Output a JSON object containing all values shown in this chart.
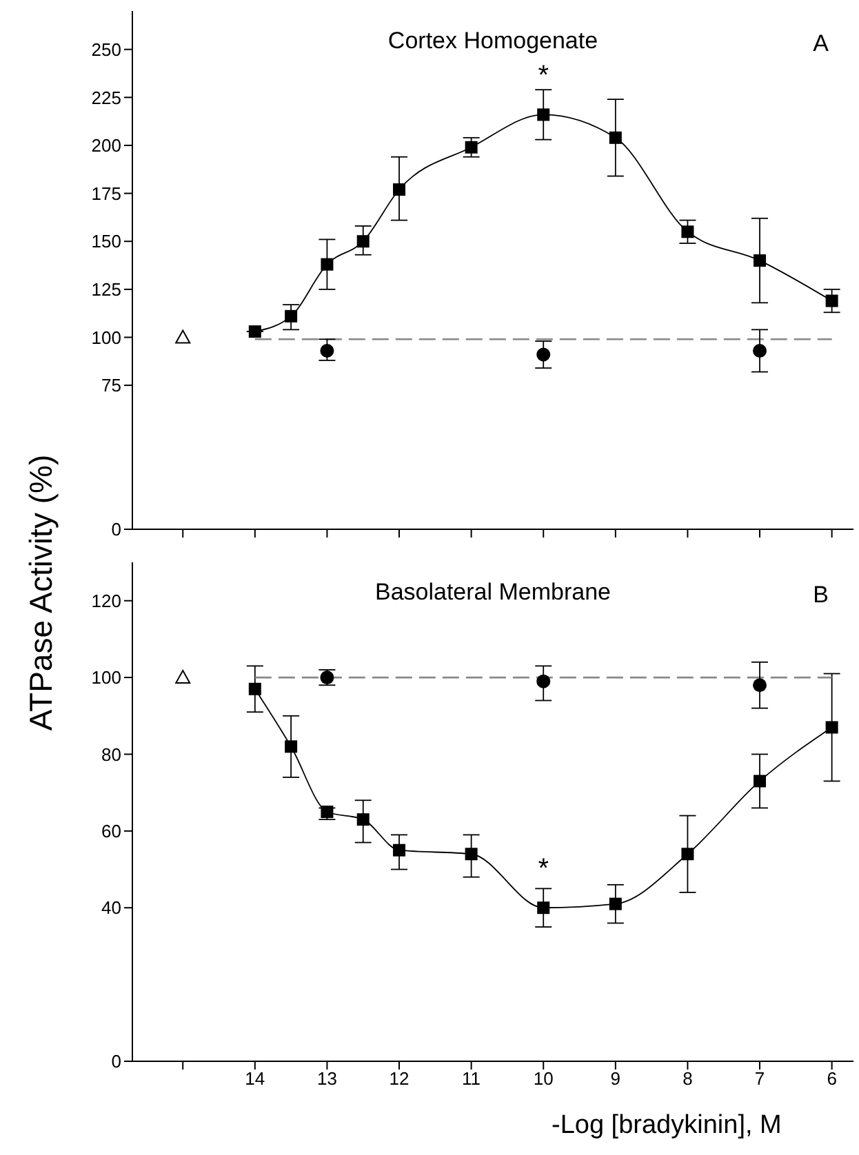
{
  "chart_data": [
    {
      "type": "line",
      "title": "Cortex Homogenate",
      "ylabel": "ATPase Activity (%)",
      "annotations": [
        "A",
        {
          "text": "*",
          "x": 10,
          "y": 216
        }
      ],
      "xlim": [
        15.7,
        5.7
      ],
      "xticks": [
        {
          "value": 15,
          "label": null
        },
        14,
        13,
        12,
        11,
        10,
        9,
        8,
        7,
        6
      ],
      "ylim": [
        0,
        270
      ],
      "yticks": [
        0,
        75,
        100,
        125,
        150,
        175,
        200,
        225,
        250
      ],
      "tick_labels": "y",
      "grid": false,
      "series": [
        {
          "type": "line",
          "color": "#000000",
          "marker": "square",
          "x": [
            14,
            13.5,
            13,
            12.5,
            12,
            11,
            10,
            9,
            8,
            7,
            6
          ],
          "values": [
            103,
            111,
            138,
            150,
            177,
            199,
            216,
            204,
            155,
            140,
            119
          ],
          "errors": [
            null,
            [
              104,
              117
            ],
            [
              125,
              151
            ],
            [
              143,
              158
            ],
            [
              161,
              194
            ],
            [
              194,
              204
            ],
            [
              203,
              229
            ],
            [
              184,
              224
            ],
            [
              149,
              161
            ],
            [
              118,
              162
            ],
            [
              113,
              125
            ]
          ]
        },
        {
          "type": "line",
          "color": "#888888",
          "marker": "none",
          "line_style": "dashed",
          "x": [
            14,
            6
          ],
          "values": [
            99,
            99
          ]
        },
        {
          "type": "scatter",
          "color": "#000000",
          "marker": "circle",
          "x": [
            13,
            10,
            7
          ],
          "values": [
            93,
            91,
            93
          ],
          "errors": [
            [
              88,
              99
            ],
            [
              84,
              98
            ],
            [
              82,
              104
            ]
          ]
        },
        {
          "type": "scatter",
          "color": "#000000",
          "marker": "triangle",
          "x": [
            15
          ],
          "values": [
            100
          ]
        }
      ]
    },
    {
      "type": "line",
      "title": "Basolateral Membrane",
      "xlabel": "-Log [bradykinin], M",
      "annotations": [
        "B",
        {
          "text": "*",
          "x": 10,
          "y": 40
        }
      ],
      "xlim": [
        15.7,
        5.7
      ],
      "xticks": [
        {
          "value": 15,
          "label": null
        },
        14,
        13,
        12,
        11,
        10,
        9,
        8,
        7,
        6
      ],
      "ylim": [
        0,
        130
      ],
      "yticks": [
        0,
        40,
        60,
        80,
        100,
        120
      ],
      "grid": false,
      "series": [
        {
          "type": "line",
          "color": "#000000",
          "marker": "square",
          "x": [
            14,
            13.5,
            13,
            12.5,
            12,
            11,
            10,
            9,
            8,
            7,
            6
          ],
          "values": [
            97,
            82,
            65,
            63,
            55,
            54,
            40,
            41,
            54,
            73,
            87
          ],
          "errors": [
            [
              91,
              103
            ],
            [
              74,
              90
            ],
            [
              63,
              66
            ],
            [
              57,
              68
            ],
            [
              50,
              59
            ],
            [
              48,
              59
            ],
            [
              35,
              45
            ],
            [
              36,
              46
            ],
            [
              44,
              64
            ],
            [
              66,
              80
            ],
            [
              73,
              101
            ]
          ]
        },
        {
          "type": "line",
          "color": "#888888",
          "marker": "none",
          "line_style": "dashed",
          "x": [
            14,
            6
          ],
          "values": [
            100,
            100
          ]
        },
        {
          "type": "scatter",
          "color": "#000000",
          "marker": "circle",
          "x": [
            13,
            10,
            7
          ],
          "values": [
            100,
            99,
            98
          ],
          "errors": [
            [
              98,
              102
            ],
            [
              94,
              103
            ],
            [
              92,
              104
            ]
          ]
        },
        {
          "type": "scatter",
          "color": "#000000",
          "marker": "triangle",
          "x": [
            15
          ],
          "values": [
            100
          ]
        }
      ]
    }
  ]
}
